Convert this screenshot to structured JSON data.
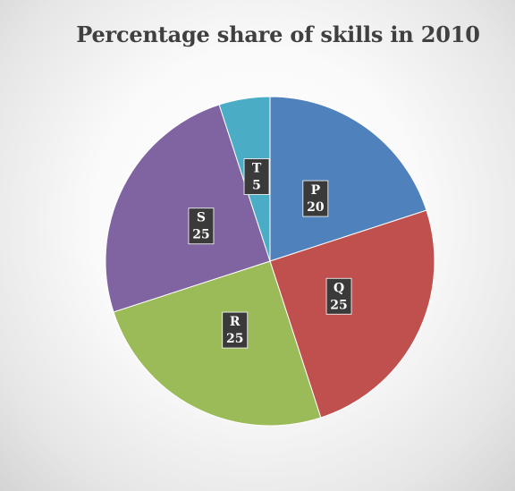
{
  "chart_data": {
    "type": "pie",
    "title": "Percentage share of skills in 2010",
    "categories": [
      "P",
      "Q",
      "R",
      "S",
      "T"
    ],
    "values": [
      20,
      25,
      25,
      25,
      5
    ],
    "colors": [
      "#4f81bd",
      "#c0504d",
      "#9bbb59",
      "#8064a2",
      "#4bacc6"
    ],
    "start_angle_deg": 0,
    "direction": "clockwise",
    "data_labels": [
      "P\n20",
      "Q\n25",
      "R\n25",
      "S\n25",
      "T\n5"
    ],
    "legend": "none"
  }
}
